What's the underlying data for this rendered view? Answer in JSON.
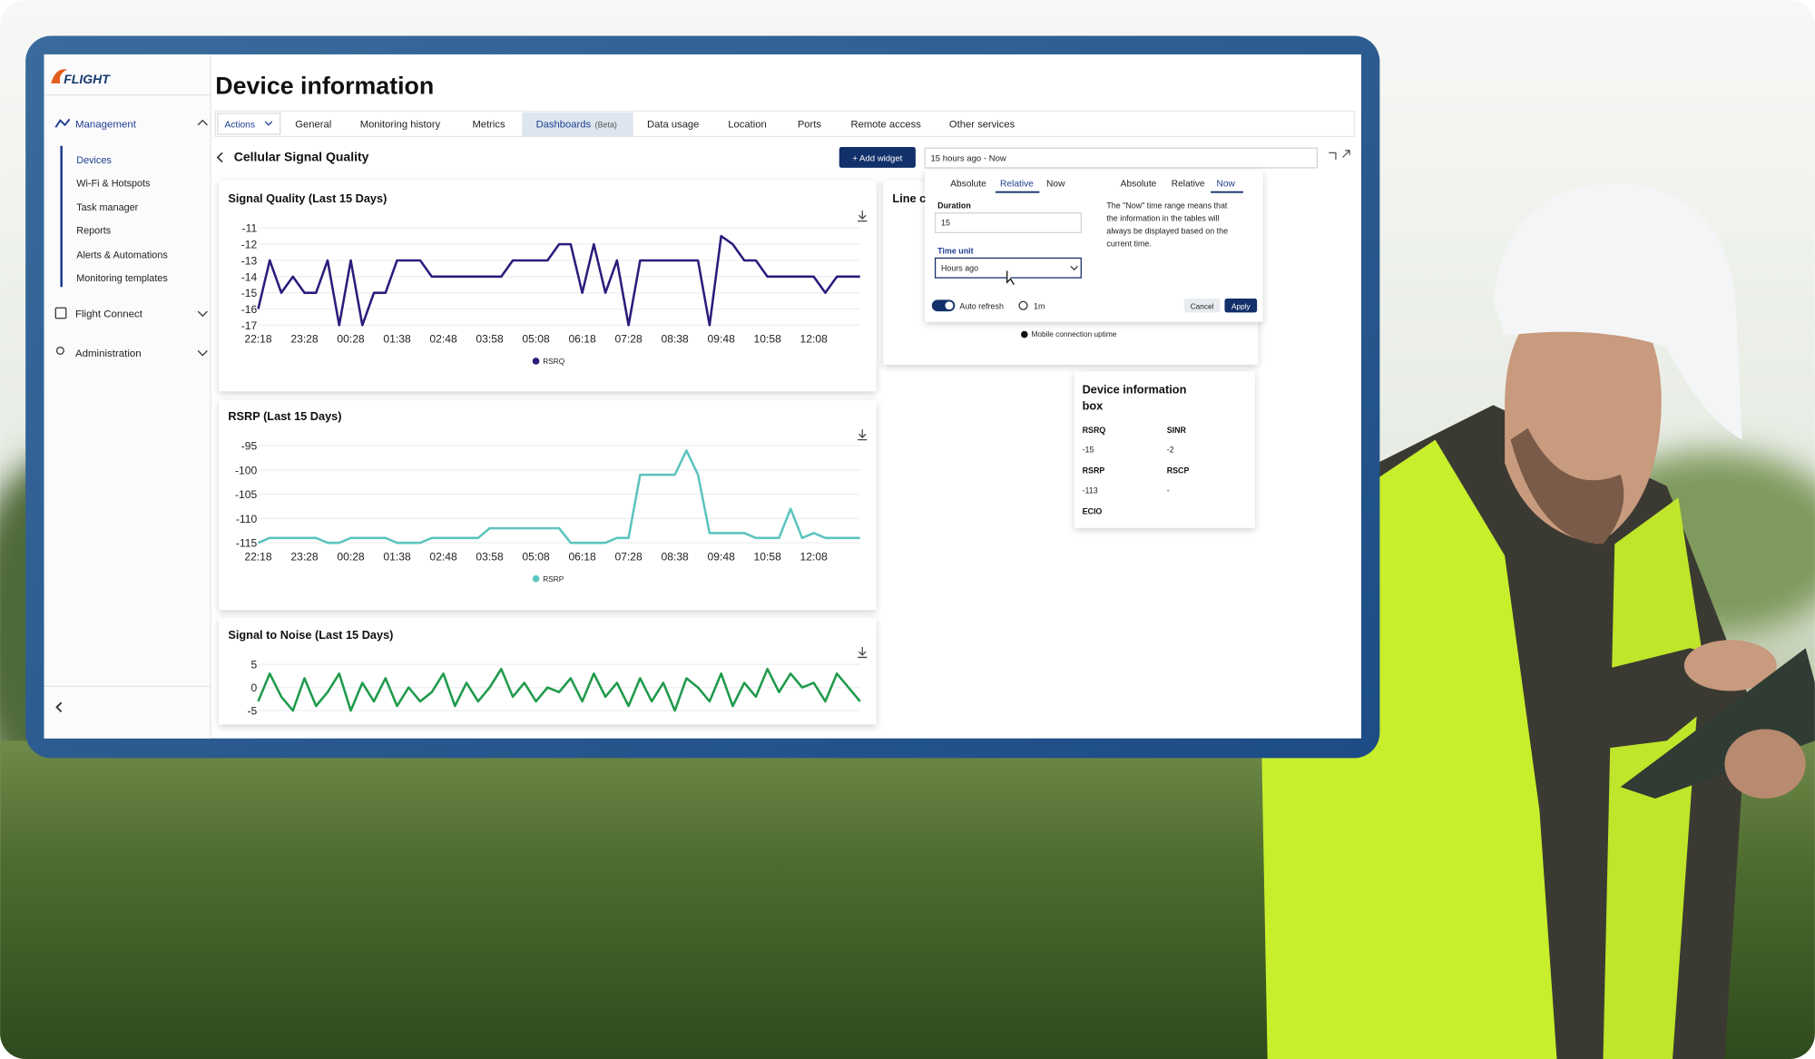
{
  "app": {
    "logo": "FLIGHT",
    "page_title": "Device information",
    "sidebar": {
      "sections": [
        {
          "label": "Management",
          "items": [
            "Devices",
            "Wi-Fi & Hotspots",
            "Task manager",
            "Reports",
            "Alerts & Automations",
            "Monitoring templates"
          ]
        },
        {
          "label": "Flight Connect"
        },
        {
          "label": "Administration"
        }
      ]
    },
    "tabs": [
      "Actions",
      "General",
      "Monitoring history",
      "Metrics",
      "Dashboards",
      "Data usage",
      "Location",
      "Ports",
      "Remote access",
      "Other services"
    ],
    "tab_badge": "(Beta)",
    "dashboard_title": "Cellular Signal Quality",
    "add_widget": "+ Add widget",
    "time_range": "15 hours ago - Now",
    "time_picker": {
      "tabs": [
        "Absolute",
        "Relative",
        "Now"
      ],
      "duration_label": "Duration",
      "duration": "15",
      "time_unit_label": "Time unit",
      "time_unit": "Hours ago",
      "auto_refresh": "Auto refresh",
      "refresh_interval": "1m",
      "cancel": "Cancel",
      "apply": "Apply",
      "now_tabs": [
        "Absolute",
        "Relative",
        "Now"
      ],
      "now_text": [
        "The \"Now\" time range means that",
        "the information in the tables will",
        "always be displayed based on the",
        "current time."
      ]
    },
    "hidden_widget": {
      "title": "Line c",
      "legend": "Mobile connection uptime"
    },
    "info_box": {
      "title_lines": [
        "Device information",
        "box"
      ],
      "fields": [
        {
          "label": "RSRQ",
          "value": "-15"
        },
        {
          "label": "SINR",
          "value": "-2"
        },
        {
          "label": "RSRP",
          "value": "-113"
        },
        {
          "label": "RSCP",
          "value": "-"
        },
        {
          "label": "ECIO"
        }
      ]
    }
  },
  "chart_data": [
    {
      "type": "line",
      "title": "Signal Quality (Last 15 Days)",
      "categories": [
        "22:18",
        null,
        null,
        null,
        "23:28",
        null,
        null,
        null,
        "00:28",
        null,
        null,
        null,
        "01:38",
        null,
        null,
        null,
        "02:48",
        null,
        null,
        null,
        "03:58",
        null,
        null,
        null,
        "05:08",
        null,
        null,
        null,
        "06:18",
        null,
        null,
        null,
        "07:28",
        null,
        null,
        null,
        "08:38",
        null,
        null,
        null,
        "09:48",
        null,
        null,
        null,
        "10:58",
        null,
        null,
        null,
        "12:08",
        null,
        null,
        null,
        null
      ],
      "series": [
        {
          "name": "RSRQ",
          "color": "#2b1d7c",
          "values": [
            -16,
            -13,
            -15,
            -14,
            -15,
            -15,
            -13,
            -17,
            -13,
            -17,
            -15,
            -15,
            -13,
            -13,
            -13,
            -14,
            -14,
            -14,
            -14,
            -14,
            -14,
            -14,
            -13,
            -13,
            -13,
            -13,
            -12,
            -12,
            -15,
            -12,
            -15,
            -13,
            -17,
            -13,
            -13,
            -13,
            -13,
            -13,
            -13,
            -17,
            -11.5,
            -12,
            -13,
            -13,
            -14,
            -14,
            -14,
            -14,
            -14,
            -15,
            -14,
            -14,
            -14
          ]
        }
      ],
      "ylim": [
        -17,
        -11
      ],
      "yticks": [
        -11,
        -12,
        -13,
        -14,
        -15,
        -16,
        -17
      ],
      "grid": true
    },
    {
      "type": "line",
      "title": "RSRP (Last 15 Days)",
      "categories": [
        "22:18",
        null,
        null,
        null,
        "23:28",
        null,
        null,
        null,
        "00:28",
        null,
        null,
        null,
        "01:38",
        null,
        null,
        null,
        "02:48",
        null,
        null,
        null,
        "03:58",
        null,
        null,
        null,
        "05:08",
        null,
        null,
        null,
        "06:18",
        null,
        null,
        null,
        "07:28",
        null,
        null,
        null,
        "08:38",
        null,
        null,
        null,
        "09:48",
        null,
        null,
        null,
        "10:58",
        null,
        null,
        null,
        "12:08",
        null,
        null,
        null,
        null
      ],
      "series": [
        {
          "name": "RSRP",
          "color": "#5cc4bf",
          "values": [
            -115,
            -114,
            -114,
            -114,
            -114,
            -114,
            -115,
            -115,
            -114,
            -114,
            -114,
            -114,
            -115,
            -115,
            -115,
            -114,
            -114,
            -114,
            -114,
            -114,
            -112,
            -112,
            -112,
            -112,
            -112,
            -112,
            -112,
            -115,
            -115,
            -115,
            -115,
            -114,
            -114,
            -101,
            -101,
            -101,
            -101,
            -96,
            -101,
            -113,
            -113,
            -113,
            -113,
            -114,
            -114,
            -114,
            -108,
            -114,
            -113,
            -114,
            -114,
            -114,
            -114
          ]
        }
      ],
      "ylim": [
        -115,
        -95
      ],
      "yticks": [
        -95,
        -100,
        -105,
        -110,
        -115
      ],
      "grid": true
    },
    {
      "type": "line",
      "title": "Signal to Noise (Last 15 Days)",
      "series": [
        {
          "color": "#1f9a4b",
          "values": [
            -3,
            3,
            -2,
            -5,
            2,
            -4,
            -1,
            3,
            -5,
            1,
            -3,
            2,
            -4,
            0,
            -3,
            -1,
            3,
            -4,
            1,
            -3,
            0,
            4,
            -2,
            1,
            -3,
            0,
            -1,
            2,
            -3,
            3,
            -2,
            1,
            -4,
            2,
            -3,
            1,
            -5,
            2,
            0,
            -3,
            3,
            -4,
            1,
            -2,
            4,
            -1,
            3,
            0,
            1,
            -3,
            3,
            0,
            -3
          ]
        }
      ],
      "ylim": [
        -5,
        5
      ],
      "yticks": [
        5,
        0,
        -5
      ],
      "grid": true
    }
  ]
}
